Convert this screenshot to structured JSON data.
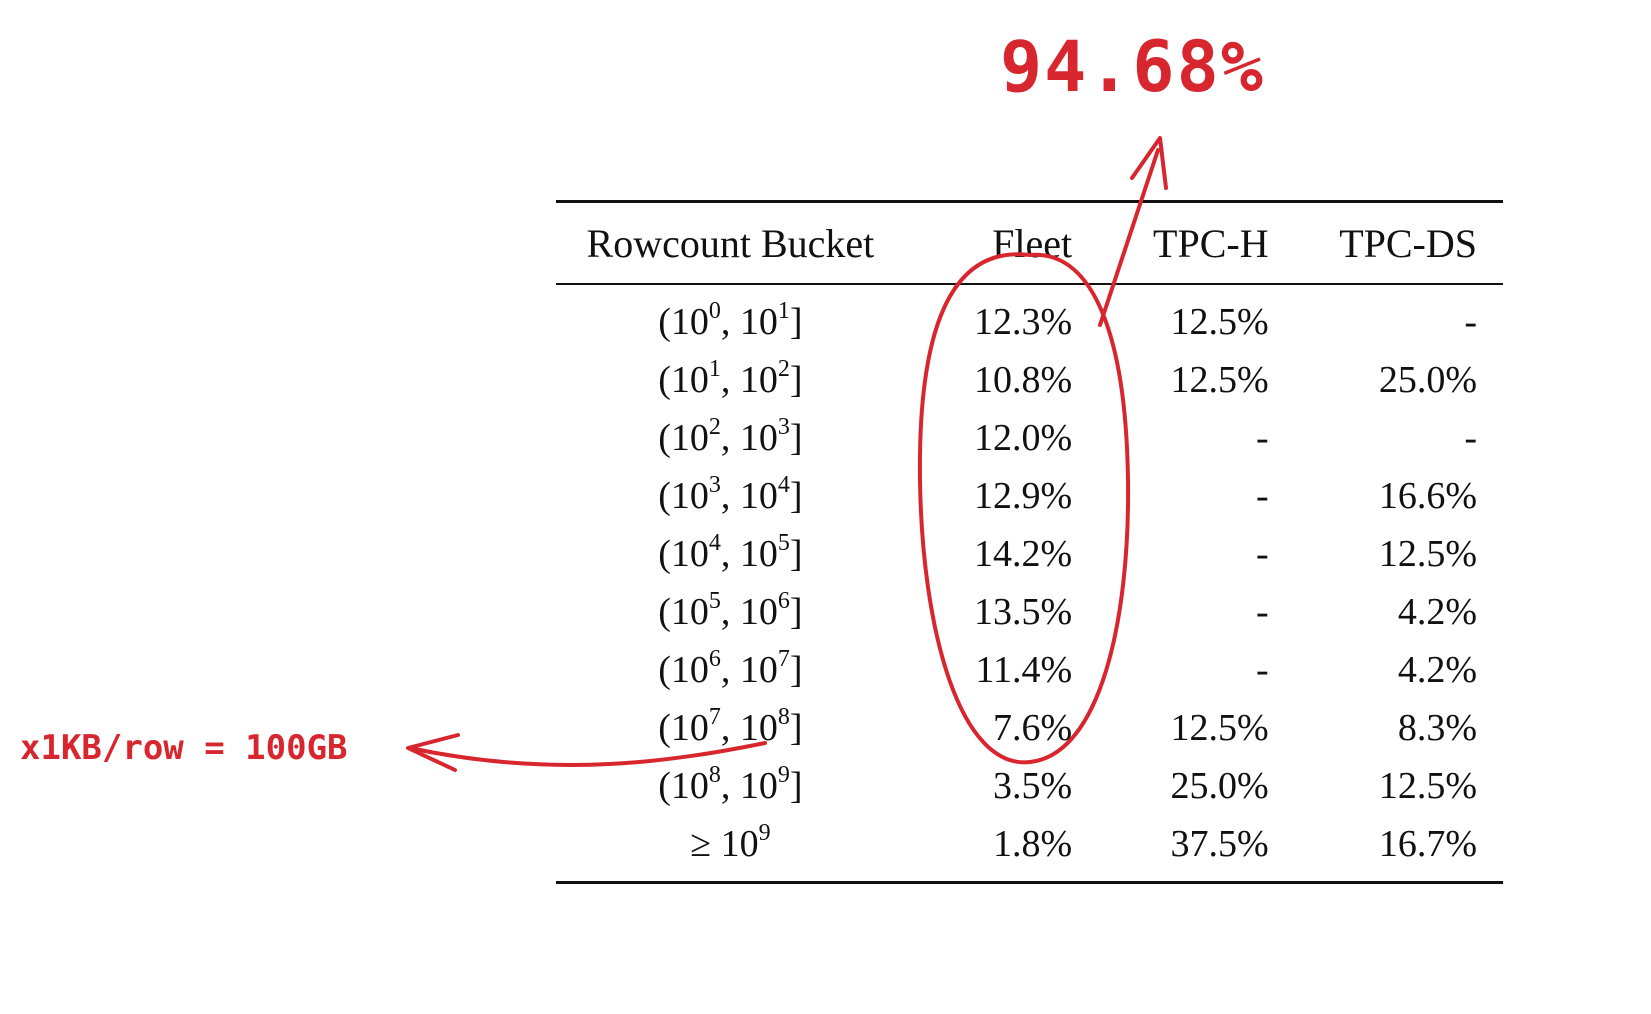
{
  "table": {
    "headers": [
      "Rowcount Bucket",
      "Fleet",
      "TPC-H",
      "TPC-DS"
    ],
    "rows": [
      {
        "lo_exp": "0",
        "hi_exp": "1",
        "fleet": "12.3%",
        "tpch": "12.5%",
        "tpcds": "-"
      },
      {
        "lo_exp": "1",
        "hi_exp": "2",
        "fleet": "10.8%",
        "tpch": "12.5%",
        "tpcds": "25.0%"
      },
      {
        "lo_exp": "2",
        "hi_exp": "3",
        "fleet": "12.0%",
        "tpch": "-",
        "tpcds": "-"
      },
      {
        "lo_exp": "3",
        "hi_exp": "4",
        "fleet": "12.9%",
        "tpch": "-",
        "tpcds": "16.6%"
      },
      {
        "lo_exp": "4",
        "hi_exp": "5",
        "fleet": "14.2%",
        "tpch": "-",
        "tpcds": "12.5%"
      },
      {
        "lo_exp": "5",
        "hi_exp": "6",
        "fleet": "13.5%",
        "tpch": "-",
        "tpcds": "4.2%"
      },
      {
        "lo_exp": "6",
        "hi_exp": "7",
        "fleet": "11.4%",
        "tpch": "-",
        "tpcds": "4.2%"
      },
      {
        "lo_exp": "7",
        "hi_exp": "8",
        "fleet": "7.6%",
        "tpch": "12.5%",
        "tpcds": "8.3%"
      },
      {
        "lo_exp": "8",
        "hi_exp": "9",
        "fleet": "3.5%",
        "tpch": "25.0%",
        "tpcds": "12.5%"
      }
    ],
    "last_row": {
      "prefix": "≥ 10",
      "exp": "9",
      "fleet": "1.8%",
      "tpch": "37.5%",
      "tpcds": "16.7%"
    }
  },
  "annotations": {
    "percent_label": "94.68%",
    "note_label": "x1KB/row = 100GB",
    "color": "#d8262f"
  }
}
